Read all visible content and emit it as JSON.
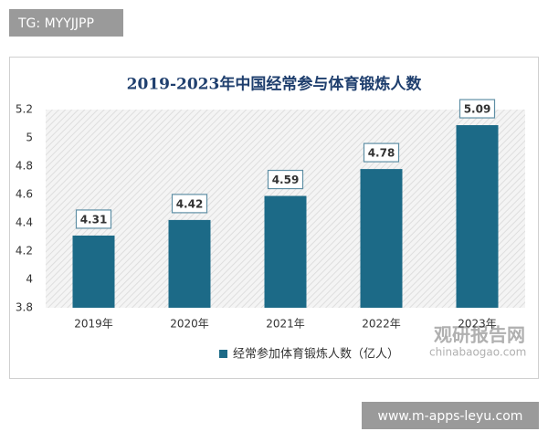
{
  "tag": "TG: MYYJJPP",
  "footer_url": "www.m-apps-leyu.com",
  "logo": {
    "name": "观研报告网",
    "url": "chinabaogao.com"
  },
  "chart_data": {
    "type": "bar",
    "title": "2019-2023年中国经常参与体育锻炼人数",
    "categories": [
      "2019年",
      "2020年",
      "2021年",
      "2022年",
      "2023年"
    ],
    "series": [
      {
        "name": "经常参加体育锻炼人数（亿人）",
        "color": "#1c6a87",
        "values": [
          4.31,
          4.42,
          4.59,
          4.78,
          5.09
        ]
      }
    ],
    "ylim": [
      3.8,
      5.2
    ],
    "yticks": [
      3.8,
      4,
      4.2,
      4.4,
      4.6,
      4.8,
      5,
      5.2
    ],
    "legend": "bottom"
  }
}
